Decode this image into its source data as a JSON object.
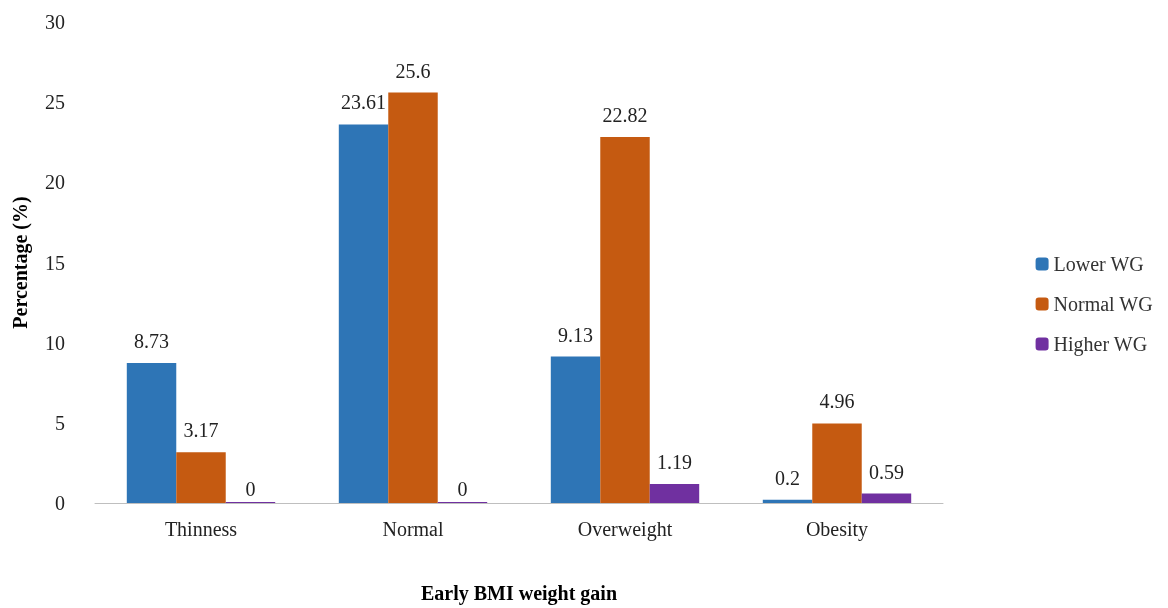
{
  "chart_data": {
    "type": "bar",
    "xlabel": "Early BMI weight gain",
    "ylabel": "Percentage (%)",
    "categories": [
      "Thinness",
      "Normal",
      "Overweight",
      "Obesity"
    ],
    "series": [
      {
        "name": "Lower WG",
        "color": "#2e75b6",
        "values": [
          8.73,
          23.61,
          9.13,
          0.2
        ]
      },
      {
        "name": "Normal WG",
        "color": "#c55a11",
        "values": [
          3.17,
          25.6,
          22.82,
          4.96
        ]
      },
      {
        "name": "Higher WG",
        "color": "#7030a0",
        "values": [
          0,
          0,
          1.19,
          0.59
        ]
      }
    ],
    "ylim": [
      0,
      30
    ],
    "yticks": [
      0,
      5,
      10,
      15,
      20,
      25,
      30
    ],
    "grid": false,
    "legend": "right",
    "data_labels": true
  }
}
